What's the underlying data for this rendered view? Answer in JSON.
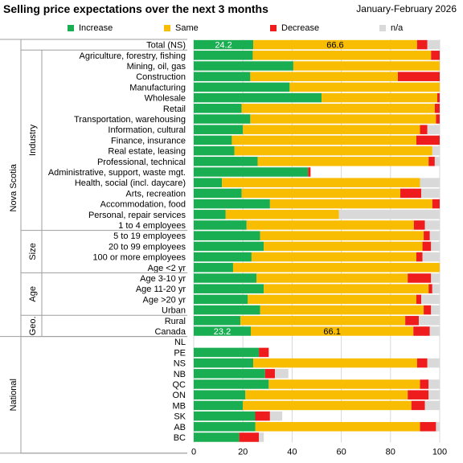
{
  "chart_data": {
    "type": "bar",
    "stacked": true,
    "orientation": "horizontal",
    "title": "Selling price expectations over the next 3 months",
    "subtitle": "January-February  2026",
    "xlim": [
      0,
      100
    ],
    "xticks": [
      0,
      20,
      40,
      60,
      80,
      100
    ],
    "grid": true,
    "legend_position": "top",
    "series": [
      {
        "name": "Increase",
        "color": "#1aae52"
      },
      {
        "name": "Same",
        "color": "#f8bd00"
      },
      {
        "name": "Decrease",
        "color": "#ee1c1c"
      },
      {
        "name": "n/a",
        "color": "#d9d9d9"
      }
    ],
    "groups": [
      {
        "outer": "Nova Scotia",
        "inner": "",
        "first": 0,
        "last": 0
      },
      {
        "outer": "Nova Scotia",
        "inner": "Industry",
        "first": 1,
        "last": 17
      },
      {
        "outer": "Nova Scotia",
        "inner": "Size",
        "first": 18,
        "last": 21
      },
      {
        "outer": "Nova Scotia",
        "inner": "Age",
        "first": 22,
        "last": 25
      },
      {
        "outer": "Nova Scotia",
        "inner": "Geo.",
        "first": 26,
        "last": 27
      },
      {
        "outer": "National",
        "inner": "",
        "first": 28,
        "last": 38
      }
    ],
    "rows": [
      {
        "label": "Total (NS)",
        "values": [
          24.2,
          66.6,
          4.2,
          5.0
        ],
        "labels": [
          "24.2",
          "66.6"
        ]
      },
      {
        "label": "Agriculture, forestry, fishing",
        "values": [
          24.0,
          72.5,
          3.5,
          0
        ]
      },
      {
        "label": "Mining, oil, gas",
        "values": [
          40.5,
          59.5,
          0,
          0
        ]
      },
      {
        "label": "Construction",
        "values": [
          23.0,
          60.0,
          17.0,
          0
        ]
      },
      {
        "label": "Manufacturing",
        "values": [
          39.0,
          61.0,
          0,
          0
        ]
      },
      {
        "label": "Wholesale",
        "values": [
          52.0,
          47.0,
          1.0,
          0
        ]
      },
      {
        "label": "Retail",
        "values": [
          19.5,
          78.5,
          2.0,
          0
        ]
      },
      {
        "label": "Transportation, warehousing",
        "values": [
          23.0,
          75.5,
          1.5,
          0
        ]
      },
      {
        "label": "Information, cultural",
        "values": [
          20.0,
          72.0,
          3.0,
          5.0
        ]
      },
      {
        "label": "Finance, insurance",
        "values": [
          15.5,
          75.0,
          9.5,
          0
        ]
      },
      {
        "label": "Real estate, leasing",
        "values": [
          16.5,
          80.5,
          0,
          3.0
        ]
      },
      {
        "label": "Professional, technical",
        "values": [
          26.0,
          69.5,
          2.5,
          2.0
        ]
      },
      {
        "label": "Administrative, support, waste mgt.",
        "values": [
          46.5,
          0,
          1.0,
          0
        ]
      },
      {
        "label": "Health, social (incl. daycare)",
        "values": [
          11.5,
          80.5,
          0,
          8.0
        ]
      },
      {
        "label": "Arts, recreation",
        "values": [
          19.5,
          64.5,
          8.5,
          7.5
        ]
      },
      {
        "label": "Accommodation, food",
        "values": [
          31.0,
          66.0,
          3.0,
          0
        ]
      },
      {
        "label": "Personal, repair services",
        "values": [
          13.0,
          46.0,
          0,
          41.0
        ]
      },
      {
        "label": "1 to 4 employees",
        "values": [
          21.5,
          68.0,
          4.5,
          6.0
        ]
      },
      {
        "label": "5 to 19 employees",
        "values": [
          27.0,
          66.5,
          2.5,
          4.0
        ]
      },
      {
        "label": "20 to 99 employees",
        "values": [
          28.5,
          64.5,
          3.5,
          3.5
        ]
      },
      {
        "label": "100 or more employees",
        "values": [
          23.5,
          67.0,
          2.5,
          7.0
        ]
      },
      {
        "label": "Age <2 yr",
        "values": [
          16.0,
          84.0,
          0,
          0
        ]
      },
      {
        "label": "Age 3-10 yr",
        "values": [
          25.5,
          61.5,
          9.5,
          3.5
        ]
      },
      {
        "label": "Age 11-20 yr",
        "values": [
          28.5,
          67.0,
          1.5,
          3.0
        ]
      },
      {
        "label": "Age >20 yr",
        "values": [
          22.0,
          68.5,
          2.0,
          7.5
        ]
      },
      {
        "label": "Urban",
        "values": [
          27.0,
          66.5,
          3.0,
          3.5
        ]
      },
      {
        "label": "Rural",
        "values": [
          19.0,
          67.0,
          5.5,
          8.5
        ]
      },
      {
        "label": "Canada",
        "values": [
          23.2,
          66.1,
          6.7,
          4.0
        ],
        "labels": [
          "23.2",
          "66.1"
        ]
      },
      {
        "label": "NL",
        "values": [
          0,
          0,
          0,
          0
        ]
      },
      {
        "label": "PE",
        "values": [
          26.5,
          0,
          4.0,
          0
        ]
      },
      {
        "label": "NS",
        "values": [
          24.2,
          66.6,
          4.2,
          5.0
        ]
      },
      {
        "label": "NB",
        "values": [
          29.0,
          0,
          4.0,
          5.5
        ]
      },
      {
        "label": "QC",
        "values": [
          30.5,
          61.5,
          3.5,
          4.5
        ]
      },
      {
        "label": "ON",
        "values": [
          21.0,
          66.0,
          8.5,
          4.5
        ]
      },
      {
        "label": "MB",
        "values": [
          20.0,
          68.5,
          5.5,
          6.0
        ]
      },
      {
        "label": "SK",
        "values": [
          25.0,
          0,
          6.0,
          5.0
        ]
      },
      {
        "label": "AB",
        "values": [
          25.0,
          67.0,
          6.5,
          1.5
        ]
      },
      {
        "label": "BC",
        "values": [
          18.5,
          0,
          8.0,
          2.0
        ]
      }
    ]
  }
}
